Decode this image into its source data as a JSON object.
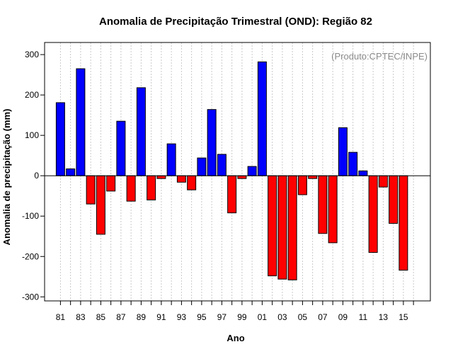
{
  "chart_data": {
    "type": "bar",
    "title": "Anomalia de Precipitação Trimestral (OND): Região 82",
    "xlabel": "Ano",
    "ylabel": "Anomalia de precipitação (mm)",
    "annotation": "(Produto:CPTEC/INPE)",
    "ylim": [
      -310,
      330
    ],
    "y_ticks": [
      300,
      200,
      100,
      0,
      -100,
      -200,
      -300
    ],
    "x_tick_labels": [
      "81",
      "83",
      "85",
      "87",
      "89",
      "91",
      "93",
      "95",
      "97",
      "99",
      "01",
      "03",
      "05",
      "07",
      "09",
      "11",
      "13",
      "15"
    ],
    "categories": [
      "81",
      "82",
      "83",
      "84",
      "85",
      "86",
      "87",
      "88",
      "89",
      "90",
      "91",
      "92",
      "93",
      "94",
      "95",
      "96",
      "97",
      "98",
      "99",
      "00",
      "01",
      "02",
      "03",
      "04",
      "05",
      "06",
      "07",
      "08",
      "09",
      "10",
      "11",
      "12",
      "13",
      "14",
      "15"
    ],
    "values": [
      181,
      17,
      265,
      -70,
      -145,
      -38,
      135,
      -63,
      218,
      -60,
      -7,
      79,
      -16,
      -35,
      44,
      164,
      53,
      -92,
      -7,
      23,
      282,
      -248,
      -256,
      -258,
      -47,
      -7,
      -143,
      -166,
      119,
      58,
      12,
      -190,
      -28,
      -118,
      -234
    ],
    "grid": true,
    "positive_color": "#0000ff",
    "negative_color": "#ff0000",
    "zero_line": true
  }
}
